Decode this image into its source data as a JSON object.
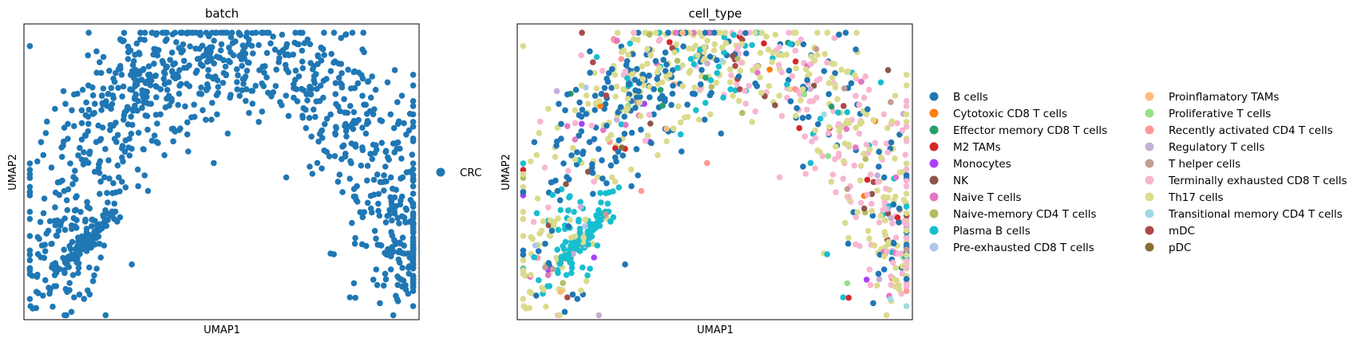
{
  "chart_data": [
    {
      "type": "scatter",
      "title": "batch",
      "xlabel": "UMAP1",
      "ylabel": "UMAP2",
      "xlim": [
        0,
        10
      ],
      "ylim": [
        0,
        10
      ],
      "xticks": [],
      "yticks": [],
      "legend_position": "right",
      "series": [
        {
          "name": "CRC",
          "color": "#1f77b4"
        }
      ]
    },
    {
      "type": "scatter",
      "title": "cell_type",
      "xlabel": "UMAP1",
      "ylabel": "UMAP2",
      "xlim": [
        0,
        10
      ],
      "ylim": [
        0,
        10
      ],
      "xticks": [],
      "yticks": [],
      "legend_position": "right",
      "legend_columns": 2,
      "series": [
        {
          "name": "B cells",
          "color": "#1f77b4"
        },
        {
          "name": "Cytotoxic CD8 T cells",
          "color": "#ff7f0e"
        },
        {
          "name": "Effector memory CD8 T cells",
          "color": "#279e68"
        },
        {
          "name": "M2 TAMs",
          "color": "#d62728"
        },
        {
          "name": "Monocytes",
          "color": "#aa40fc"
        },
        {
          "name": "NK",
          "color": "#8c564b"
        },
        {
          "name": "Naive T cells",
          "color": "#e377c2"
        },
        {
          "name": "Naive-memory CD4 T cells",
          "color": "#b5bd61"
        },
        {
          "name": "Plasma B cells",
          "color": "#17becf"
        },
        {
          "name": "Pre-exhausted CD8 T cells",
          "color": "#aec7e8"
        },
        {
          "name": "Proinflamatory TAMs",
          "color": "#ffbb78"
        },
        {
          "name": "Proliferative T cells",
          "color": "#98df8a"
        },
        {
          "name": "Recently activated CD4 T cells",
          "color": "#ff9896"
        },
        {
          "name": "Regulatory T cells",
          "color": "#c5b0d5"
        },
        {
          "name": "T helper cells",
          "color": "#c49c94"
        },
        {
          "name": "Terminally exhausted CD8 T cells",
          "color": "#f7b6d2"
        },
        {
          "name": "Th17 cells",
          "color": "#dbdb8d"
        },
        {
          "name": "Transitional memory CD4 T cells",
          "color": "#9edae5"
        },
        {
          "name": "mDC",
          "color": "#ad494a"
        },
        {
          "name": "pDC",
          "color": "#8c6d31"
        }
      ]
    }
  ]
}
